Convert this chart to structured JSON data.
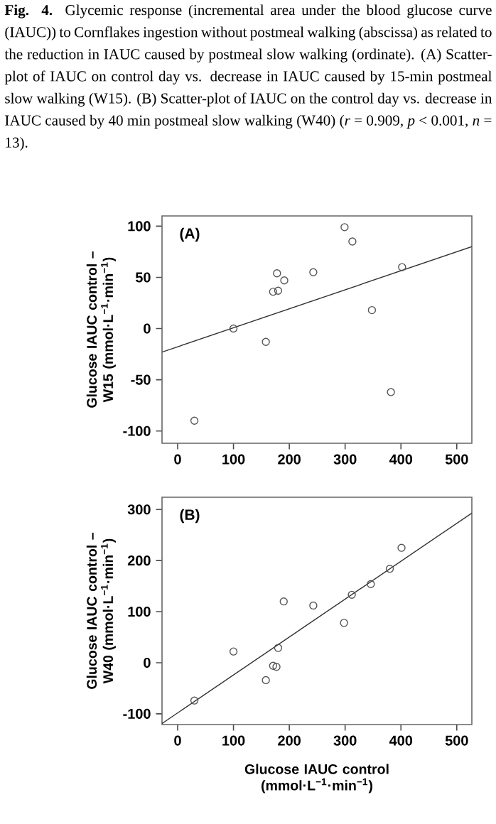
{
  "chart_data": [
    {
      "type": "scatter",
      "title": "**Fig. 4.** Glycemic response (incremental area under the blood glucose curve (IAUC)) to Cornflakes ingestion without postmeal walking (abscissa) as related to the reduction in IAUC caused by postmeal slow walking (ordinate). (A) Scatter-plot of IAUC on control day vs. decrease in IAUC caused by 15-min postmeal slow walking (W15). (B) Scatter-plot of IAUC on the control day vs. decrease in IAUC caused by 40 min postmeal slow walking (W40) (*r* = 0.909, *p* < 0.001, *n* = 13).",
      "ylabel": "Glucose IAUC control – W15 (mmol·L$^{−1}$·min$^{−1}$)",
      "annotations": [
        "(A)"
      ],
      "marker": "circle",
      "xlim": [
        -28,
        527
      ],
      "ylim": [
        -112,
        110
      ],
      "xticks": [
        0,
        100,
        200,
        300,
        400,
        500
      ],
      "yticks": [
        -100,
        -50,
        0,
        50,
        100
      ],
      "series": [
        {
          "color": "#555555",
          "x": [
            30,
            100,
            158,
            171,
            178,
            180,
            191,
            243,
            299,
            313,
            348,
            382,
            402
          ],
          "values": [
            -90,
            0,
            -13,
            36,
            54,
            37,
            47,
            55,
            99,
            85,
            18,
            -62,
            60
          ]
        },
        {
          "type": "line",
          "marker": "none",
          "color": "#333333",
          "x": [
            -28,
            527
          ],
          "values": [
            -23,
            80
          ]
        }
      ]
    },
    {
      "type": "scatter",
      "xlabel": "Glucose  IAUC control (mmol·L$^{−1}$·min$^{−1}$)",
      "ylabel": "Glucose IAUC control – W40 (mmol·L$^{−1}$·min$^{−1}$)",
      "annotations": [
        "(B)"
      ],
      "marker": "circle",
      "xlim": [
        -28,
        527
      ],
      "ylim": [
        -121,
        324
      ],
      "xticks": [
        0,
        100,
        200,
        300,
        400,
        500
      ],
      "yticks": [
        -100,
        0,
        100,
        200,
        300
      ],
      "series": [
        {
          "color": "#555555",
          "x": [
            30,
            100,
            158,
            171,
            177,
            180,
            190,
            243,
            298,
            312,
            346,
            380,
            401
          ],
          "values": [
            -74,
            22,
            -34,
            -6,
            -8,
            29,
            120,
            112,
            78,
            133,
            154,
            184,
            225
          ]
        },
        {
          "type": "line",
          "marker": "none",
          "color": "#333333",
          "x": [
            -28,
            527
          ],
          "values": [
            -119,
            293
          ]
        }
      ]
    }
  ]
}
